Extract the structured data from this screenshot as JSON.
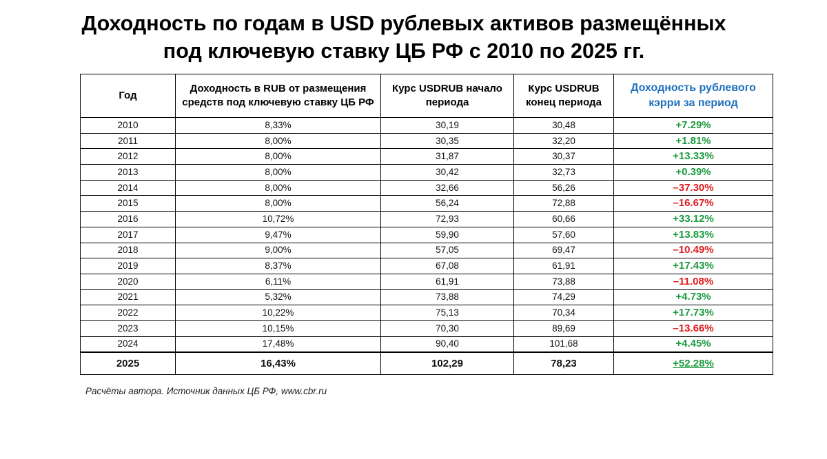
{
  "title": {
    "line1": "Доходность по годам в USD рублевых активов размещённых",
    "line2": "под ключевую ставку ЦБ РФ с 2010 по 2025 гг."
  },
  "table": {
    "headers": {
      "year": "Год",
      "rub_yield_line1": "Доходность в RUB от размещения",
      "rub_yield_line2": "средств под ключевую ставку ЦБ РФ",
      "usdrub_start_line1": "Курс USDRUB начало",
      "usdrub_start_line2": "периода",
      "usdrub_end_line1": "Курс USDRUB",
      "usdrub_end_line2": "конец периода",
      "carry_line1": "Доходность рублевого",
      "carry_line2": "кэрри за период"
    },
    "rows": [
      {
        "year": "2010",
        "rub_yield": "8,33%",
        "usdrub_start": "30,19",
        "usdrub_end": "30,48",
        "carry": "+7.29%"
      },
      {
        "year": "2011",
        "rub_yield": "8,00%",
        "usdrub_start": "30,35",
        "usdrub_end": "32,20",
        "carry": "+1.81%"
      },
      {
        "year": "2012",
        "rub_yield": "8,00%",
        "usdrub_start": "31,87",
        "usdrub_end": "30,37",
        "carry": "+13.33%"
      },
      {
        "year": "2013",
        "rub_yield": "8,00%",
        "usdrub_start": "30,42",
        "usdrub_end": "32,73",
        "carry": "+0.39%"
      },
      {
        "year": "2014",
        "rub_yield": "8,00%",
        "usdrub_start": "32,66",
        "usdrub_end": "56,26",
        "carry": "–37.30%"
      },
      {
        "year": "2015",
        "rub_yield": "8,00%",
        "usdrub_start": "56,24",
        "usdrub_end": "72,88",
        "carry": "–16.67%"
      },
      {
        "year": "2016",
        "rub_yield": "10,72%",
        "usdrub_start": "72,93",
        "usdrub_end": "60,66",
        "carry": "+33.12%"
      },
      {
        "year": "2017",
        "rub_yield": "9,47%",
        "usdrub_start": "59,90",
        "usdrub_end": "57,60",
        "carry": "+13.83%"
      },
      {
        "year": "2018",
        "rub_yield": "9,00%",
        "usdrub_start": "57,05",
        "usdrub_end": "69,47",
        "carry": "–10.49%"
      },
      {
        "year": "2019",
        "rub_yield": "8,37%",
        "usdrub_start": "67,08",
        "usdrub_end": "61,91",
        "carry": "+17.43%"
      },
      {
        "year": "2020",
        "rub_yield": "6,11%",
        "usdrub_start": "61,91",
        "usdrub_end": "73,88",
        "carry": "–11.08%"
      },
      {
        "year": "2021",
        "rub_yield": "5,32%",
        "usdrub_start": "73,88",
        "usdrub_end": "74,29",
        "carry": "+4.73%"
      },
      {
        "year": "2022",
        "rub_yield": "10,22%",
        "usdrub_start": "75,13",
        "usdrub_end": "70,34",
        "carry": "+17.73%"
      },
      {
        "year": "2023",
        "rub_yield": "10,15%",
        "usdrub_start": "70,30",
        "usdrub_end": "89,69",
        "carry": "–13.66%"
      },
      {
        "year": "2024",
        "rub_yield": "17,48%",
        "usdrub_start": "90,40",
        "usdrub_end": "101,68",
        "carry": "+4.45%"
      }
    ],
    "total": {
      "year": "2025",
      "rub_yield": "16,43%",
      "usdrub_start": "102,29",
      "usdrub_end": "78,23",
      "carry": "+52.28%"
    }
  },
  "footnote": "Расчёты автора. Источник данных ЦБ РФ,  www.cbr.ru",
  "colors": {
    "positive": "#1c9a3e",
    "negative": "#e01b1b",
    "carry_header": "#1f6fbf"
  }
}
